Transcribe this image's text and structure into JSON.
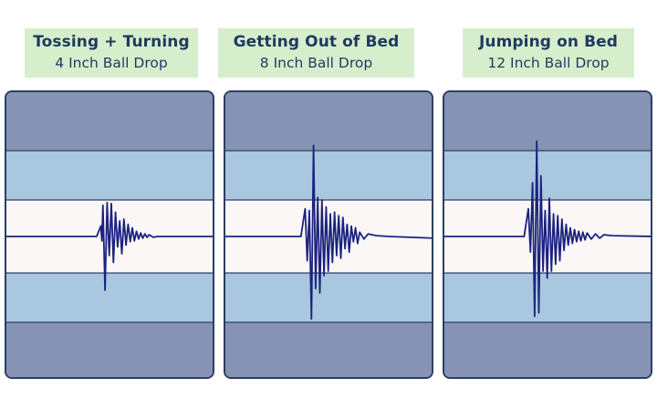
{
  "chart_data": [
    {
      "type": "line",
      "title": "Tossing + Turning",
      "subtitle": "4 Inch Ball Drop",
      "colors": {
        "trace": "#1a237e",
        "outer_band": "#8793b5",
        "inner_band": "#a9c7df",
        "center_band": "#fcf7f7",
        "label_bg": "#d7eecd"
      },
      "ylim": [
        -1,
        1
      ],
      "series": [
        {
          "x": [
            0,
            0.43,
            0.45,
            0.455,
            0.46,
            0.47,
            0.48,
            0.49,
            0.5,
            0.51,
            0.52,
            0.53,
            0.54,
            0.55,
            0.56,
            0.57,
            0.58,
            0.59,
            0.6,
            0.61,
            0.62,
            0.63,
            0.64,
            0.65,
            0.66,
            0.67,
            0.68,
            0.7,
            0.72,
            1.0
          ],
          "y": [
            0,
            0,
            0.12,
            -0.05,
            0.36,
            -0.62,
            0.39,
            -0.22,
            0.38,
            -0.3,
            0.28,
            -0.12,
            0.18,
            -0.2,
            0.2,
            -0.1,
            0.14,
            -0.06,
            0.1,
            -0.05,
            0.06,
            -0.03,
            0.04,
            -0.02,
            0.03,
            -0.01,
            0.02,
            -0.01,
            0,
            0
          ]
        }
      ]
    },
    {
      "type": "line",
      "title": "Getting Out of Bed",
      "subtitle": "8 Inch Ball Drop",
      "colors": {
        "trace": "#1a237e",
        "outer_band": "#8793b5",
        "inner_band": "#a9c7df",
        "center_band": "#fcf7f7",
        "label_bg": "#d7eecd"
      },
      "ylim": [
        -1,
        1
      ],
      "series": [
        {
          "x": [
            0,
            0.36,
            0.38,
            0.39,
            0.4,
            0.41,
            0.42,
            0.43,
            0.44,
            0.45,
            0.46,
            0.47,
            0.48,
            0.49,
            0.5,
            0.51,
            0.52,
            0.53,
            0.54,
            0.55,
            0.56,
            0.57,
            0.58,
            0.59,
            0.6,
            0.61,
            0.62,
            0.63,
            0.64,
            0.66,
            0.68,
            0.72,
            0.78,
            1.0
          ],
          "y": [
            0,
            0,
            0.32,
            -0.28,
            0.3,
            -0.95,
            1.05,
            -0.6,
            0.45,
            -0.65,
            0.42,
            -0.45,
            0.34,
            -0.4,
            0.26,
            -0.3,
            0.28,
            -0.22,
            0.24,
            -0.25,
            0.22,
            -0.14,
            0.14,
            -0.18,
            0.12,
            -0.06,
            0.1,
            -0.08,
            0.05,
            -0.03,
            0.03,
            0.01,
            0,
            -0.02
          ]
        }
      ]
    },
    {
      "type": "line",
      "title": "Jumping on Bed",
      "subtitle": "12 Inch Ball Drop",
      "colors": {
        "trace": "#1a237e",
        "outer_band": "#8793b5",
        "inner_band": "#a9c7df",
        "center_band": "#fcf7f7",
        "label_bg": "#d7eecd"
      },
      "ylim": [
        -1,
        1
      ],
      "series": [
        {
          "x": [
            0,
            0.38,
            0.4,
            0.41,
            0.42,
            0.43,
            0.44,
            0.45,
            0.46,
            0.47,
            0.48,
            0.49,
            0.5,
            0.51,
            0.52,
            0.53,
            0.54,
            0.55,
            0.56,
            0.57,
            0.58,
            0.59,
            0.6,
            0.61,
            0.62,
            0.63,
            0.64,
            0.65,
            0.66,
            0.67,
            0.68,
            0.7,
            0.72,
            0.74,
            0.76,
            0.8,
            1.0
          ],
          "y": [
            0,
            0,
            0.32,
            -0.18,
            0.62,
            -0.92,
            1.1,
            -0.88,
            0.7,
            -0.4,
            0.3,
            -0.48,
            0.44,
            -0.4,
            0.26,
            -0.32,
            0.24,
            -0.28,
            0.2,
            -0.16,
            0.14,
            -0.1,
            0.1,
            -0.08,
            0.08,
            -0.06,
            0.06,
            -0.05,
            0.05,
            -0.04,
            0.04,
            -0.03,
            0.03,
            -0.02,
            0.02,
            0.01,
            0
          ]
        }
      ]
    }
  ]
}
